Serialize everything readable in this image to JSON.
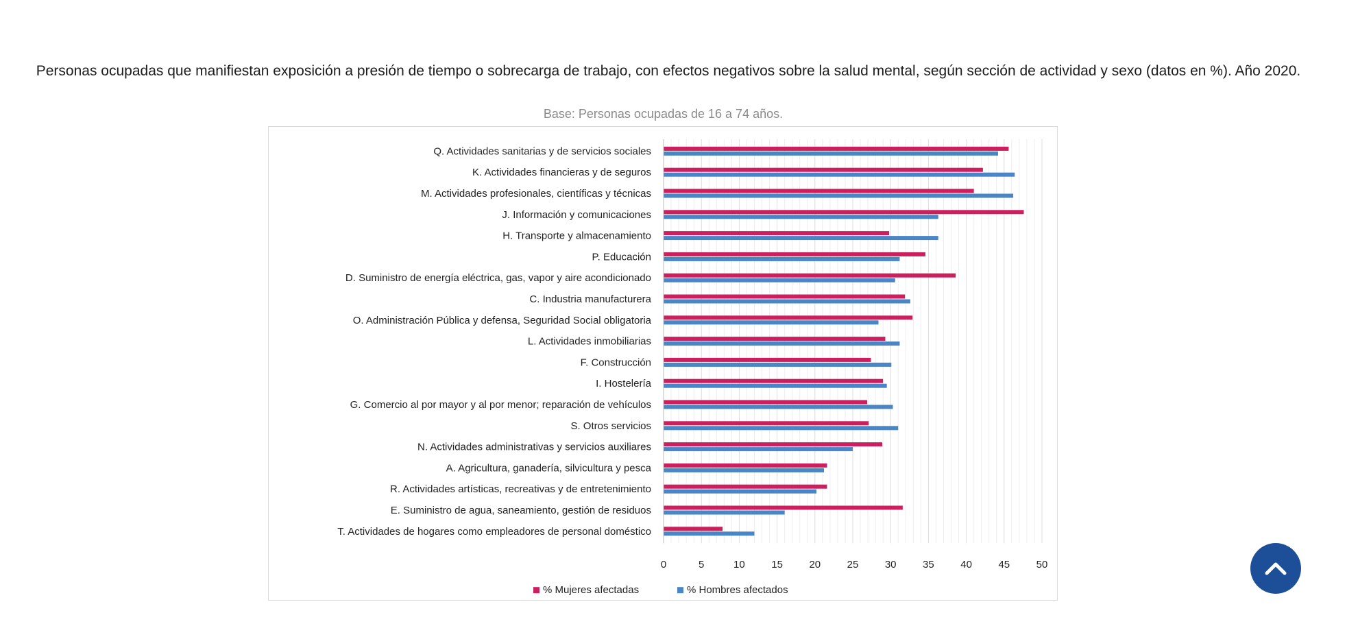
{
  "title": "Personas ocupadas que manifiestan exposición a presión de tiempo o sobrecarga de trabajo, con efectos negativos sobre la salud mental, según sección de actividad y sexo (datos en %). Año 2020.",
  "subtitle": "Base: Personas ocupadas de 16 a 74 años.",
  "scroll_top_icon": "chevron-up-icon",
  "colors": {
    "women": "#cc1f5e",
    "men": "#4a86c5",
    "accent": "#1d4f98"
  },
  "chart_data": {
    "type": "bar",
    "orientation": "horizontal",
    "title": "Personas ocupadas que manifiestan exposición a presión de tiempo o sobrecarga de trabajo, con efectos negativos sobre la salud mental, según sección de actividad y sexo (datos en %). Año 2020.",
    "subtitle": "Base: Personas ocupadas de 16 a 74 años.",
    "xlim": [
      0,
      50
    ],
    "xticks": [
      "0",
      "5",
      "10",
      "15",
      "20",
      "25",
      "30",
      "35",
      "40",
      "45",
      "50"
    ],
    "grid": true,
    "legend_position": "bottom",
    "categories": [
      "Q. Actividades sanitarias y de servicios sociales",
      "K. Actividades financieras y de seguros",
      "M. Actividades profesionales, científicas y técnicas",
      "J. Información y comunicaciones",
      "H. Transporte y almacenamiento",
      "P. Educación",
      "D. Suministro de energía eléctrica, gas, vapor y aire acondicionado",
      "C. Industria manufacturera",
      "O. Administración Pública y defensa, Seguridad Social obligatoria",
      "L. Actividades inmobiliarias",
      "F. Construcción",
      "I. Hostelería",
      "G. Comercio al por mayor y al por menor; reparación de vehículos",
      "S. Otros servicios",
      "N. Actividades administrativas y servicios auxiliares",
      "A. Agricultura, ganadería, silvicultura y pesca",
      "R. Actividades artísticas, recreativas y de entretenimiento",
      "E. Suministro de agua, saneamiento, gestión de residuos",
      "T. Actividades de hogares como empleadores de personal doméstico"
    ],
    "series": [
      {
        "name": "% Mujeres afectadas",
        "color": "#cc1f5e",
        "values": [
          45.6,
          42.2,
          41.0,
          47.6,
          29.8,
          34.6,
          38.6,
          31.9,
          32.9,
          29.3,
          27.4,
          29.0,
          26.9,
          27.1,
          28.9,
          21.6,
          21.6,
          31.6,
          7.8
        ]
      },
      {
        "name": "% Hombres afectados",
        "color": "#4a86c5",
        "values": [
          44.2,
          46.4,
          46.2,
          36.3,
          36.3,
          31.2,
          30.6,
          32.6,
          28.4,
          31.2,
          30.1,
          29.5,
          30.3,
          31.0,
          25.0,
          21.2,
          20.2,
          16.0,
          12.0
        ]
      }
    ]
  }
}
